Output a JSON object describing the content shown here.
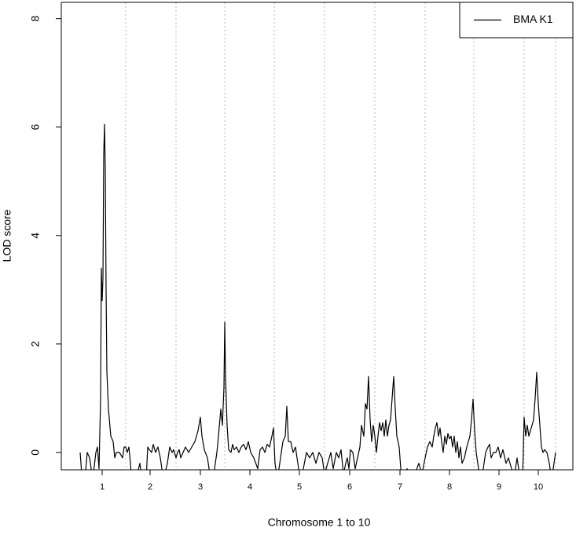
{
  "chart_data": {
    "type": "line",
    "x_label": "Chromosome 1 to 10",
    "y_label": "LOD score",
    "x": [
      24,
      26,
      30,
      33,
      36,
      40,
      44,
      46,
      48,
      50,
      51,
      52,
      53,
      54,
      55,
      56,
      57,
      58,
      60,
      63,
      66,
      68,
      70,
      74,
      78,
      80,
      82,
      84,
      86,
      88,
      90,
      95,
      100,
      103,
      108,
      110,
      112,
      115,
      117,
      120,
      123,
      126,
      130,
      135,
      138,
      141,
      143,
      146,
      148,
      150,
      152,
      155,
      158,
      162,
      166,
      170,
      174,
      177,
      179,
      182,
      186,
      190,
      194,
      198,
      200,
      203,
      205,
      207,
      208,
      209,
      211,
      213,
      216,
      218,
      220,
      223,
      226,
      229,
      232,
      235,
      238,
      241,
      245,
      250,
      253,
      256,
      259,
      262,
      265,
      268,
      270,
      272,
      275,
      279,
      282,
      285,
      287,
      289,
      292,
      295,
      298,
      301,
      304,
      308,
      312,
      316,
      320,
      324,
      328,
      332,
      335,
      339,
      343,
      346,
      350,
      353,
      356,
      359,
      362,
      364,
      366,
      368,
      371,
      374,
      377,
      380,
      382,
      385,
      387,
      389,
      391,
      393,
      395,
      397,
      399,
      401,
      403,
      405,
      407,
      409,
      411,
      413,
      415,
      417,
      419,
      421,
      423,
      425,
      427,
      430,
      432,
      436,
      440,
      445,
      450,
      455,
      459,
      463,
      466,
      469,
      472,
      474,
      476,
      478,
      480,
      482,
      484,
      486,
      488,
      490,
      492,
      494,
      496,
      498,
      500,
      502,
      504,
      506,
      508,
      510,
      513,
      516,
      518,
      520,
      522,
      524,
      526,
      528,
      531,
      535,
      538,
      540,
      543,
      545,
      547,
      550,
      553,
      556,
      559,
      562,
      566,
      569,
      573,
      577,
      580,
      583,
      587,
      589,
      591,
      593,
      595,
      597,
      599,
      601,
      603,
      605,
      607,
      609,
      611,
      613,
      615,
      618,
      621,
      624,
      627,
      629
    ],
    "series": [
      {
        "name": "BMA K1",
        "color": "#000000",
        "values": [
          0,
          -0.4,
          -0.5,
          0,
          -0.1,
          -0.5,
          0,
          0.1,
          -0.3,
          1.0,
          3.4,
          2.8,
          3.2,
          5.5,
          6.05,
          5.2,
          3.0,
          1.5,
          0.8,
          0.3,
          0.2,
          -0.1,
          0,
          0,
          -0.1,
          0.1,
          0.1,
          0,
          0.1,
          -0.2,
          -0.6,
          -0.5,
          -0.2,
          -0.6,
          -0.5,
          0.1,
          0.05,
          0,
          0.15,
          0,
          0.1,
          -0.1,
          -0.5,
          -0.2,
          0.1,
          0,
          0.05,
          -0.1,
          0,
          0.05,
          -0.1,
          0,
          0.1,
          0,
          0.1,
          0.2,
          0.4,
          0.65,
          0.3,
          0.05,
          -0.1,
          -0.5,
          -0.4,
          0,
          0.3,
          0.8,
          0.5,
          1.2,
          2.4,
          1.4,
          0.5,
          0.05,
          0,
          0.15,
          0.05,
          0.1,
          0,
          0.1,
          0.15,
          0.05,
          0.2,
          0,
          -0.1,
          -0.3,
          0.05,
          0.1,
          0,
          0.15,
          0.1,
          0.3,
          0.45,
          -0.2,
          -0.5,
          -0.1,
          0.2,
          0.3,
          0.85,
          0.2,
          0.2,
          0,
          0.1,
          -0.2,
          -0.5,
          -0.3,
          0,
          -0.1,
          0,
          -0.2,
          0,
          -0.1,
          -0.4,
          -0.2,
          0,
          -0.3,
          0,
          -0.1,
          0.05,
          -0.4,
          -0.2,
          -0.1,
          -0.3,
          0.05,
          0,
          -0.3,
          -0.1,
          0.1,
          0.5,
          0.3,
          0.9,
          0.8,
          1.4,
          0.6,
          0.2,
          0.5,
          0.3,
          0,
          0.3,
          0.55,
          0.4,
          0.55,
          0.3,
          0.6,
          0.3,
          0.5,
          0.6,
          1.0,
          1.4,
          0.8,
          0.3,
          0.1,
          -0.3,
          -0.5,
          -0.3,
          -0.5,
          -0.4,
          -0.2,
          -0.4,
          -0.1,
          0.1,
          0.2,
          0.1,
          0.3,
          0.45,
          0.55,
          0.3,
          0.45,
          0.2,
          0,
          0.3,
          0.15,
          0.35,
          0.25,
          0.3,
          0.1,
          0.3,
          0,
          0.2,
          -0.1,
          0.1,
          -0.2,
          -0.1,
          0.1,
          0.2,
          0.3,
          0.6,
          0.98,
          0.4,
          0,
          -0.3,
          -0.5,
          -0.2,
          0,
          0.1,
          0.15,
          -0.1,
          0,
          0,
          0.1,
          -0.1,
          0.05,
          -0.2,
          -0.1,
          -0.3,
          -0.4,
          -0.1,
          -0.4,
          -0.5,
          0.65,
          0.3,
          0.5,
          0.3,
          0.4,
          0.5,
          0.6,
          1.0,
          1.48,
          0.9,
          0.5,
          0.1,
          0,
          0.05,
          0,
          -0.2,
          -0.5,
          -0.2,
          0
        ]
      }
    ],
    "xlim": [
      0,
      651
    ],
    "ylim": [
      -0.32,
      8.3
    ],
    "xticks": [
      {
        "value": 52,
        "label": "1"
      },
      {
        "value": 113,
        "label": "2"
      },
      {
        "value": 177,
        "label": "3"
      },
      {
        "value": 240,
        "label": "4"
      },
      {
        "value": 303,
        "label": "5"
      },
      {
        "value": 367,
        "label": "6"
      },
      {
        "value": 431,
        "label": "7"
      },
      {
        "value": 494,
        "label": "8"
      },
      {
        "value": 557,
        "label": "9"
      },
      {
        "value": 607,
        "label": "10"
      }
    ],
    "yticks": [
      0,
      2,
      4,
      6,
      8
    ],
    "chromosome_boundaries": [
      82,
      146,
      208,
      271,
      335,
      399,
      463,
      525,
      589,
      629
    ],
    "legend": "top-right"
  }
}
